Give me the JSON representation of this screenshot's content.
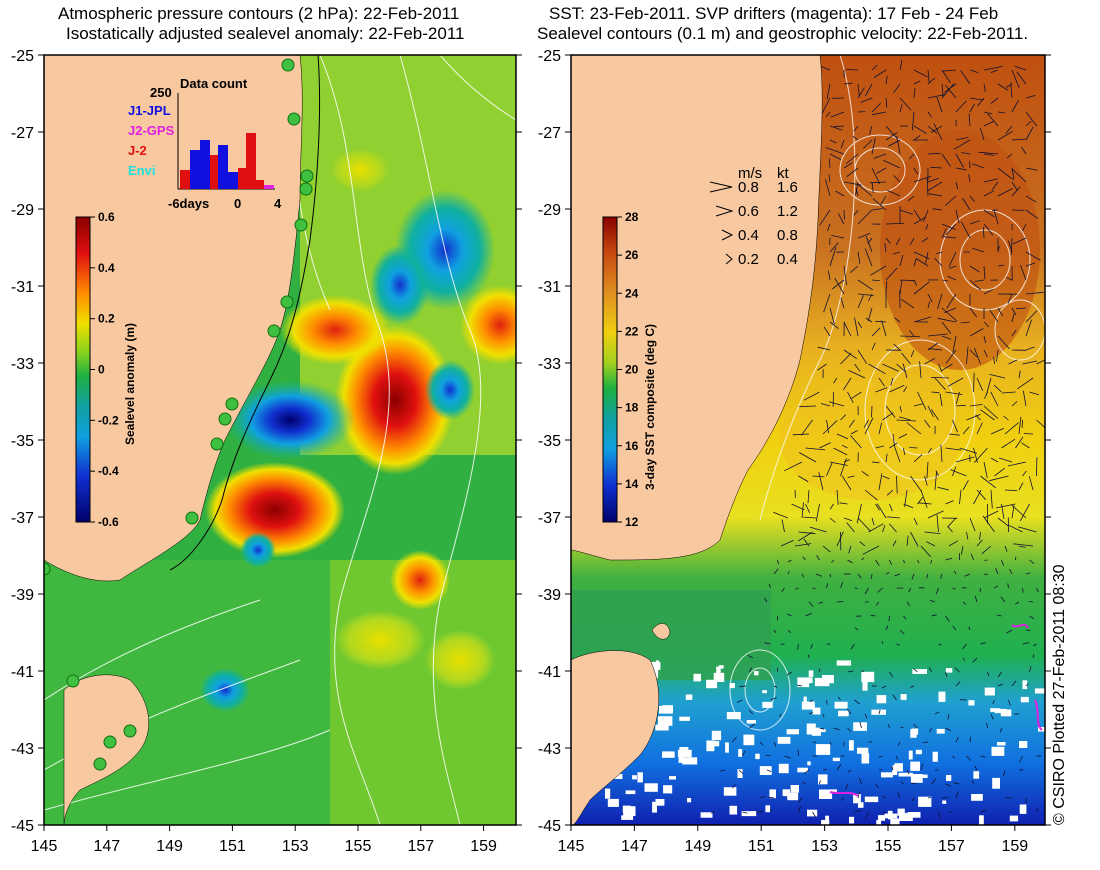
{
  "left_panel": {
    "title_line1": "Atmospheric pressure contours (2 hPa): 22-Feb-2011",
    "title_line2": "Isostatically adjusted sealevel anomaly: 22-Feb-2011",
    "colorbar": {
      "label": "Sealevel anomaly (m)",
      "ticks": [
        "0.6",
        "0.4",
        "0.2",
        "0",
        "-0.2",
        "-0.4",
        "-0.6"
      ]
    },
    "inset": {
      "title": "Data count",
      "ymax_label": "250",
      "x_ticks": [
        "-6days",
        "0",
        "4"
      ],
      "legend": [
        {
          "label": "J1-JPL",
          "color": "#1010e0"
        },
        {
          "label": "J2-GPS",
          "color": "#e020e0"
        },
        {
          "label": "J-2",
          "color": "#e01010"
        },
        {
          "label": "Envi",
          "color": "#20e0e0"
        }
      ]
    }
  },
  "right_panel": {
    "title_line1": "SST: 23-Feb-2011. SVP drifters (magenta): 17 Feb - 24 Feb",
    "title_line2": "Sealevel contours (0.1 m) and geostrophic velocity: 22-Feb-2011.",
    "colorbar": {
      "label": "3-day SST composite (deg C)",
      "ticks": [
        "28",
        "26",
        "24",
        "22",
        "20",
        "18",
        "16",
        "14",
        "12"
      ]
    },
    "speed_legend": {
      "header_ms": "m/s",
      "header_kt": "kt",
      "rows": [
        {
          "ms": "0.8",
          "kt": "1.6"
        },
        {
          "ms": "0.6",
          "kt": "1.2"
        },
        {
          "ms": "0.4",
          "kt": "0.8"
        },
        {
          "ms": "0.2",
          "kt": "0.4"
        }
      ]
    }
  },
  "axes": {
    "y_ticks": [
      "-25",
      "-27",
      "-29",
      "-31",
      "-33",
      "-35",
      "-37",
      "-39",
      "-41",
      "-43",
      "-45"
    ],
    "x_ticks": [
      "145",
      "147",
      "149",
      "151",
      "153",
      "155",
      "157",
      "159"
    ]
  },
  "credit": "© CSIRO Plotted 27-Feb-2011 08:30",
  "colors": {
    "land": "#f8c8a0",
    "coast_line": "#000000",
    "drifter": "#e020e0"
  }
}
